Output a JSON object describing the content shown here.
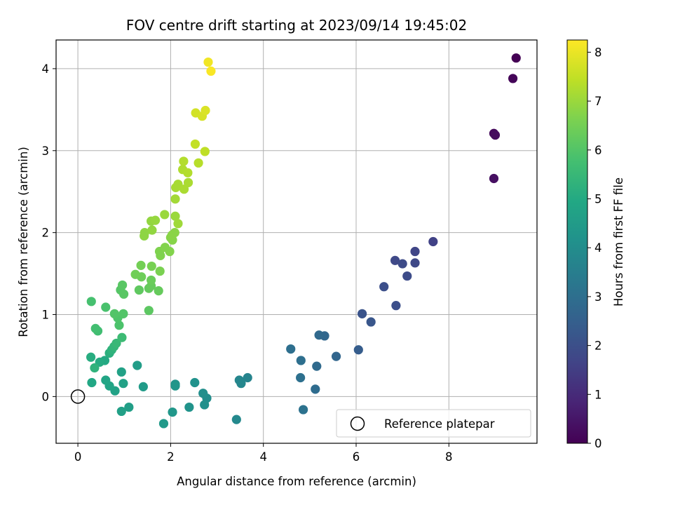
{
  "chart_data": {
    "type": "scatter",
    "title": "FOV centre drift starting at 2023/09/14 19:45:02",
    "xlabel": "Angular distance from reference (arcmin)",
    "ylabel": "Rotation from reference (arcmin)",
    "xlim": [
      -0.47,
      9.9
    ],
    "ylim": [
      -0.57,
      4.35
    ],
    "xticks": [
      0,
      2,
      4,
      6,
      8
    ],
    "yticks": [
      0,
      1,
      2,
      3,
      4
    ],
    "grid": true,
    "colormap": "viridis",
    "colorbar": {
      "label": "Hours from first FF file",
      "range": [
        0,
        8.25
      ],
      "ticks": [
        0,
        1,
        2,
        3,
        4,
        5,
        6,
        7,
        8
      ]
    },
    "legend": {
      "placement": "lower right",
      "entries": [
        "Reference platepar"
      ]
    },
    "reference_point": {
      "x": 0,
      "y": 0,
      "label": "Reference platepar"
    },
    "points": [
      {
        "x": 9.45,
        "y": 4.13,
        "t": 0.0
      },
      {
        "x": 9.38,
        "y": 3.88,
        "t": 0.1
      },
      {
        "x": 8.97,
        "y": 3.21,
        "t": 0.2
      },
      {
        "x": 9.0,
        "y": 3.19,
        "t": 0.25
      },
      {
        "x": 8.97,
        "y": 2.66,
        "t": 0.35
      },
      {
        "x": 7.66,
        "y": 1.89,
        "t": 1.6
      },
      {
        "x": 7.27,
        "y": 1.77,
        "t": 1.7
      },
      {
        "x": 6.84,
        "y": 1.66,
        "t": 1.8
      },
      {
        "x": 7.27,
        "y": 1.63,
        "t": 1.8
      },
      {
        "x": 7.0,
        "y": 1.62,
        "t": 1.85
      },
      {
        "x": 7.1,
        "y": 1.47,
        "t": 1.9
      },
      {
        "x": 6.6,
        "y": 1.34,
        "t": 2.0
      },
      {
        "x": 6.86,
        "y": 1.11,
        "t": 2.0
      },
      {
        "x": 6.13,
        "y": 1.01,
        "t": 2.1
      },
      {
        "x": 6.32,
        "y": 0.91,
        "t": 2.2
      },
      {
        "x": 6.05,
        "y": 0.57,
        "t": 2.4
      },
      {
        "x": 5.57,
        "y": 0.49,
        "t": 2.7
      },
      {
        "x": 5.32,
        "y": 0.74,
        "t": 2.75
      },
      {
        "x": 5.2,
        "y": 0.75,
        "t": 2.8
      },
      {
        "x": 5.15,
        "y": 0.37,
        "t": 2.85
      },
      {
        "x": 5.12,
        "y": 0.09,
        "t": 2.9
      },
      {
        "x": 4.81,
        "y": 0.44,
        "t": 3.0
      },
      {
        "x": 4.59,
        "y": 0.58,
        "t": 3.0
      },
      {
        "x": 4.8,
        "y": 0.23,
        "t": 3.05
      },
      {
        "x": 4.86,
        "y": -0.16,
        "t": 3.1
      },
      {
        "x": 3.66,
        "y": 0.23,
        "t": 3.7
      },
      {
        "x": 3.48,
        "y": 0.2,
        "t": 3.75
      },
      {
        "x": 3.52,
        "y": 0.16,
        "t": 3.8
      },
      {
        "x": 3.42,
        "y": -0.28,
        "t": 3.85
      },
      {
        "x": 2.78,
        "y": -0.02,
        "t": 4.0
      },
      {
        "x": 2.7,
        "y": 0.04,
        "t": 4.05
      },
      {
        "x": 2.73,
        "y": -0.1,
        "t": 4.1
      },
      {
        "x": 2.52,
        "y": 0.17,
        "t": 4.15
      },
      {
        "x": 2.4,
        "y": -0.13,
        "t": 4.2
      },
      {
        "x": 2.1,
        "y": 0.15,
        "t": 4.25
      },
      {
        "x": 2.1,
        "y": 0.13,
        "t": 4.3
      },
      {
        "x": 2.04,
        "y": -0.19,
        "t": 4.35
      },
      {
        "x": 1.85,
        "y": -0.33,
        "t": 4.4
      },
      {
        "x": 1.41,
        "y": 0.12,
        "t": 4.5
      },
      {
        "x": 1.28,
        "y": 0.38,
        "t": 4.55
      },
      {
        "x": 1.1,
        "y": -0.13,
        "t": 4.6
      },
      {
        "x": 0.94,
        "y": -0.18,
        "t": 4.65
      },
      {
        "x": 0.98,
        "y": 0.16,
        "t": 4.7
      },
      {
        "x": 0.94,
        "y": 0.3,
        "t": 4.7
      },
      {
        "x": 0.8,
        "y": 0.07,
        "t": 4.75
      },
      {
        "x": 0.68,
        "y": 0.13,
        "t": 4.8
      },
      {
        "x": 0.6,
        "y": 0.2,
        "t": 4.85
      },
      {
        "x": 0.3,
        "y": 0.17,
        "t": 4.9
      },
      {
        "x": 0.58,
        "y": 0.44,
        "t": 5.0
      },
      {
        "x": 0.47,
        "y": 0.42,
        "t": 5.05
      },
      {
        "x": 0.28,
        "y": 0.48,
        "t": 5.1
      },
      {
        "x": 0.68,
        "y": 0.53,
        "t": 5.2
      },
      {
        "x": 0.73,
        "y": 0.57,
        "t": 5.3
      },
      {
        "x": 0.36,
        "y": 0.35,
        "t": 5.3
      },
      {
        "x": 0.78,
        "y": 0.61,
        "t": 5.4
      },
      {
        "x": 0.83,
        "y": 0.65,
        "t": 5.5
      },
      {
        "x": 0.95,
        "y": 0.72,
        "t": 5.6
      },
      {
        "x": 0.43,
        "y": 0.8,
        "t": 5.7
      },
      {
        "x": 0.38,
        "y": 0.83,
        "t": 5.75
      },
      {
        "x": 0.29,
        "y": 1.16,
        "t": 5.8
      },
      {
        "x": 0.6,
        "y": 1.09,
        "t": 5.85
      },
      {
        "x": 0.89,
        "y": 0.87,
        "t": 5.9
      },
      {
        "x": 0.86,
        "y": 0.96,
        "t": 5.95
      },
      {
        "x": 0.79,
        "y": 1.01,
        "t": 6.0
      },
      {
        "x": 0.98,
        "y": 1.01,
        "t": 6.0
      },
      {
        "x": 0.92,
        "y": 1.3,
        "t": 6.05
      },
      {
        "x": 0.99,
        "y": 1.25,
        "t": 6.1
      },
      {
        "x": 0.96,
        "y": 1.36,
        "t": 6.1
      },
      {
        "x": 1.53,
        "y": 1.05,
        "t": 6.15
      },
      {
        "x": 1.32,
        "y": 1.3,
        "t": 6.2
      },
      {
        "x": 1.53,
        "y": 1.32,
        "t": 6.25
      },
      {
        "x": 1.58,
        "y": 1.35,
        "t": 6.3
      },
      {
        "x": 1.74,
        "y": 1.29,
        "t": 6.3
      },
      {
        "x": 1.58,
        "y": 1.42,
        "t": 6.35
      },
      {
        "x": 1.37,
        "y": 1.46,
        "t": 6.4
      },
      {
        "x": 1.24,
        "y": 1.49,
        "t": 6.45
      },
      {
        "x": 1.36,
        "y": 1.6,
        "t": 6.5
      },
      {
        "x": 1.59,
        "y": 1.59,
        "t": 6.55
      },
      {
        "x": 1.77,
        "y": 1.53,
        "t": 6.6
      },
      {
        "x": 1.78,
        "y": 1.72,
        "t": 6.65
      },
      {
        "x": 1.76,
        "y": 1.77,
        "t": 6.65
      },
      {
        "x": 1.88,
        "y": 1.82,
        "t": 6.7
      },
      {
        "x": 1.98,
        "y": 1.77,
        "t": 6.7
      },
      {
        "x": 2.0,
        "y": 1.94,
        "t": 6.75
      },
      {
        "x": 2.04,
        "y": 1.91,
        "t": 6.75
      },
      {
        "x": 2.03,
        "y": 1.97,
        "t": 6.8
      },
      {
        "x": 2.09,
        "y": 2.0,
        "t": 6.8
      },
      {
        "x": 1.43,
        "y": 1.96,
        "t": 6.85
      },
      {
        "x": 1.44,
        "y": 2.0,
        "t": 6.85
      },
      {
        "x": 1.6,
        "y": 2.03,
        "t": 6.9
      },
      {
        "x": 1.58,
        "y": 2.14,
        "t": 6.9
      },
      {
        "x": 1.67,
        "y": 2.15,
        "t": 6.95
      },
      {
        "x": 1.87,
        "y": 2.22,
        "t": 7.0
      },
      {
        "x": 2.1,
        "y": 2.2,
        "t": 7.0
      },
      {
        "x": 2.16,
        "y": 2.11,
        "t": 7.05
      },
      {
        "x": 2.1,
        "y": 2.41,
        "t": 7.1
      },
      {
        "x": 2.11,
        "y": 2.55,
        "t": 7.15
      },
      {
        "x": 2.16,
        "y": 2.59,
        "t": 7.15
      },
      {
        "x": 2.29,
        "y": 2.53,
        "t": 7.2
      },
      {
        "x": 2.38,
        "y": 2.61,
        "t": 7.2
      },
      {
        "x": 2.26,
        "y": 2.77,
        "t": 7.25
      },
      {
        "x": 2.37,
        "y": 2.73,
        "t": 7.3
      },
      {
        "x": 2.28,
        "y": 2.87,
        "t": 7.3
      },
      {
        "x": 2.6,
        "y": 2.85,
        "t": 7.35
      },
      {
        "x": 2.74,
        "y": 2.99,
        "t": 7.45
      },
      {
        "x": 2.53,
        "y": 3.08,
        "t": 7.5
      },
      {
        "x": 2.54,
        "y": 3.46,
        "t": 7.7
      },
      {
        "x": 2.68,
        "y": 3.42,
        "t": 7.75
      },
      {
        "x": 2.75,
        "y": 3.49,
        "t": 7.8
      },
      {
        "x": 2.81,
        "y": 4.08,
        "t": 8.1
      },
      {
        "x": 2.87,
        "y": 3.97,
        "t": 8.2
      }
    ]
  }
}
